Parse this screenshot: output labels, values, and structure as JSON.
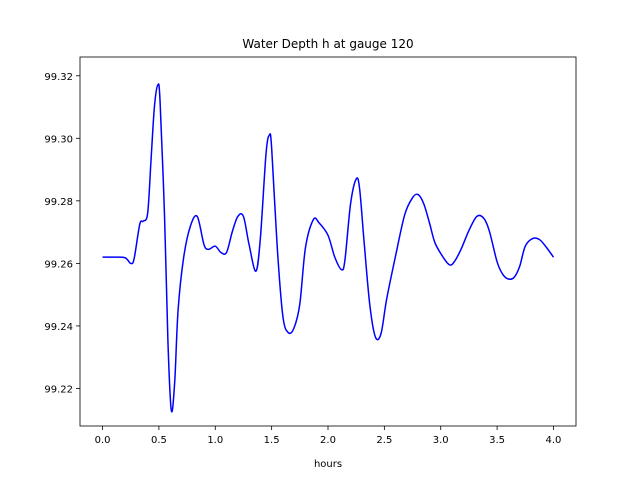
{
  "chart_data": {
    "type": "line",
    "title": "Water Depth h at gauge 120",
    "xlabel": "hours",
    "ylabel": "",
    "xlim": [
      -0.2,
      4.2
    ],
    "ylim": [
      99.208,
      99.326
    ],
    "xticks": [
      0.0,
      0.5,
      1.0,
      1.5,
      2.0,
      2.5,
      3.0,
      3.5,
      4.0
    ],
    "xtick_labels": [
      "0.0",
      "0.5",
      "1.0",
      "1.5",
      "2.0",
      "2.5",
      "3.0",
      "3.5",
      "4.0"
    ],
    "yticks": [
      99.22,
      99.24,
      99.26,
      99.28,
      99.3,
      99.32
    ],
    "ytick_labels": [
      "99.22",
      "99.24",
      "99.26",
      "99.28",
      "99.30",
      "99.32"
    ],
    "grid": false,
    "legend": "none",
    "series": [
      {
        "color": "#0000ff",
        "x": [
          0.0,
          0.1,
          0.2,
          0.25,
          0.28,
          0.33,
          0.36,
          0.4,
          0.43,
          0.46,
          0.49,
          0.51,
          0.55,
          0.58,
          0.61,
          0.64,
          0.67,
          0.72,
          0.78,
          0.84,
          0.9,
          0.94,
          1.0,
          1.05,
          1.1,
          1.15,
          1.2,
          1.25,
          1.3,
          1.36,
          1.4,
          1.45,
          1.48,
          1.5,
          1.55,
          1.6,
          1.65,
          1.7,
          1.75,
          1.8,
          1.87,
          1.92,
          2.0,
          2.06,
          2.12,
          2.15,
          2.2,
          2.25,
          2.28,
          2.32,
          2.37,
          2.42,
          2.47,
          2.52,
          2.6,
          2.68,
          2.75,
          2.8,
          2.85,
          2.9,
          2.95,
          3.03,
          3.08,
          3.12,
          3.18,
          3.25,
          3.32,
          3.38,
          3.43,
          3.5,
          3.55,
          3.6,
          3.65,
          3.7,
          3.75,
          3.82,
          3.88,
          3.94,
          4.0
        ],
        "y": [
          99.262,
          99.262,
          99.2618,
          99.26,
          99.2615,
          99.2725,
          99.2735,
          99.276,
          99.293,
          99.31,
          99.317,
          99.312,
          99.275,
          99.235,
          99.213,
          99.222,
          99.245,
          99.262,
          99.272,
          99.275,
          99.266,
          99.2645,
          99.2655,
          99.2635,
          99.2635,
          99.27,
          99.275,
          99.275,
          99.266,
          99.2575,
          99.268,
          99.295,
          99.301,
          99.297,
          99.265,
          99.243,
          99.2378,
          99.2395,
          99.247,
          99.265,
          99.274,
          99.273,
          99.269,
          99.262,
          99.258,
          99.261,
          99.279,
          99.287,
          99.284,
          99.267,
          99.247,
          99.2365,
          99.2375,
          99.2485,
          99.2625,
          99.2755,
          99.281,
          99.282,
          99.279,
          99.273,
          99.2665,
          99.2615,
          99.2595,
          99.2605,
          99.2645,
          99.2705,
          99.275,
          99.2745,
          99.2705,
          99.2605,
          99.2565,
          99.255,
          99.2555,
          99.259,
          99.2655,
          99.268,
          99.2675,
          99.265,
          99.262
        ]
      }
    ]
  }
}
